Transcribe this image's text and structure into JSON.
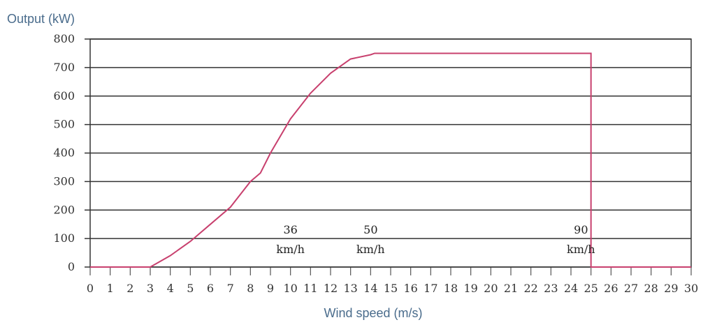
{
  "chart_data": {
    "type": "line",
    "ylabel": "Output (kW)",
    "xlabel": "Wind speed (m/s)",
    "xlim": [
      0,
      30
    ],
    "ylim": [
      0,
      800
    ],
    "xticks": [
      "0",
      "1",
      "2",
      "3",
      "4",
      "5",
      "6",
      "7",
      "8",
      "9",
      "10",
      "11",
      "12",
      "13",
      "14",
      "15",
      "16",
      "17",
      "18",
      "19",
      "20",
      "21",
      "22",
      "23",
      "24",
      "25",
      "26",
      "27",
      "28",
      "29",
      "30"
    ],
    "yticks": [
      "0",
      "100",
      "200",
      "300",
      "400",
      "500",
      "600",
      "700",
      "800"
    ],
    "grid": "horizontal",
    "series": [
      {
        "color": "#c8406e",
        "x": [
          0,
          3,
          4,
          5,
          6,
          7,
          8,
          8.5,
          9,
          10,
          11,
          12,
          13,
          14,
          14.2,
          25,
          25,
          30
        ],
        "y": [
          0,
          0,
          40,
          90,
          150,
          210,
          300,
          330,
          400,
          520,
          610,
          680,
          730,
          745,
          750,
          750,
          0,
          0
        ]
      }
    ],
    "annotations": [
      {
        "x": 10,
        "value": "36",
        "unit": "km/h"
      },
      {
        "x": 14,
        "value": "50",
        "unit": "km/h"
      },
      {
        "x": 24.5,
        "value": "90",
        "unit": "km/h"
      }
    ]
  }
}
